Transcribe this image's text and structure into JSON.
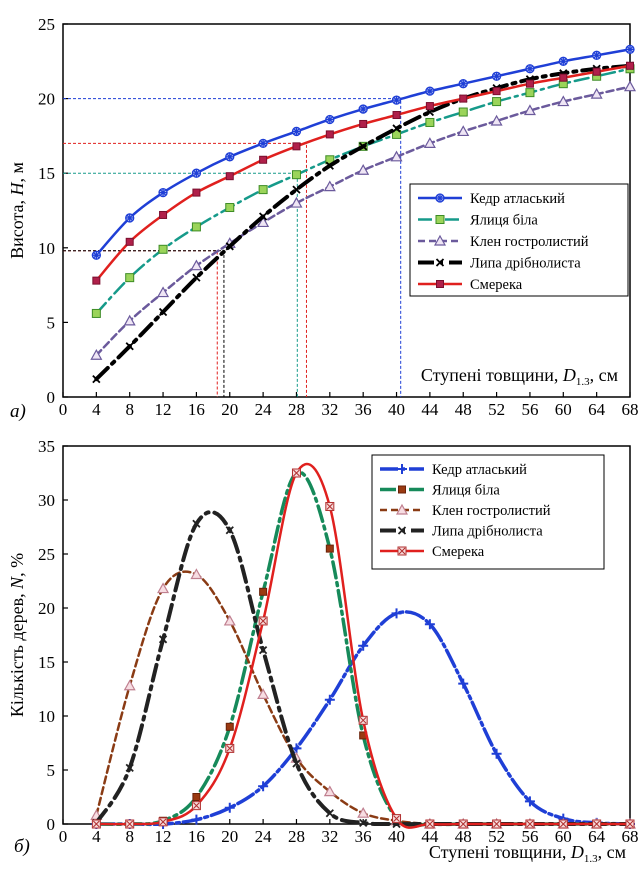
{
  "chart_data": [
    {
      "type": "line",
      "panel_label": "а)",
      "ylabel_parts": [
        "Висота, ",
        "H",
        ", м"
      ],
      "xlabel_parts": [
        "Ступені товщини, ",
        "D",
        "1.3",
        ", см"
      ],
      "x": [
        4,
        8,
        12,
        16,
        20,
        24,
        28,
        32,
        36,
        40,
        44,
        48,
        52,
        56,
        60,
        64,
        68
      ],
      "xlim": [
        0,
        68
      ],
      "ylim": [
        0,
        25
      ],
      "xticks": [
        0,
        4,
        8,
        12,
        16,
        20,
        24,
        28,
        32,
        36,
        40,
        44,
        48,
        52,
        56,
        60,
        64,
        68
      ],
      "yticks": [
        0,
        5,
        10,
        15,
        20,
        25
      ],
      "legend_position": "right",
      "series": [
        {
          "name": "Кедр атласький",
          "color": "#1f3fd6",
          "marker": "star",
          "dash": "",
          "values": [
            9.5,
            12.0,
            13.7,
            15.0,
            16.1,
            17.0,
            17.8,
            18.6,
            19.3,
            19.9,
            20.5,
            21.0,
            21.5,
            22.0,
            22.5,
            22.9,
            23.3
          ]
        },
        {
          "name": "Ялиця біла",
          "color": "#169a8a",
          "marker": "square-green",
          "dash": "14 5 3 5",
          "values": [
            5.6,
            8.0,
            9.9,
            11.4,
            12.7,
            13.9,
            14.9,
            15.9,
            16.8,
            17.6,
            18.4,
            19.1,
            19.8,
            20.4,
            21.0,
            21.5,
            22.0
          ]
        },
        {
          "name": "Клен гостролистий",
          "color": "#6b5a9c",
          "marker": "triangle",
          "dash": "7 4",
          "values": [
            2.8,
            5.1,
            7.0,
            8.8,
            10.3,
            11.7,
            13.0,
            14.1,
            15.2,
            16.1,
            17.0,
            17.8,
            18.5,
            19.2,
            19.8,
            20.3,
            20.8
          ]
        },
        {
          "name": "Липа дрібнолиста",
          "color": "#000000",
          "marker": "x",
          "dash": "16 6 3 6",
          "width": 4,
          "values": [
            1.2,
            3.4,
            5.7,
            8.0,
            10.1,
            12.1,
            13.9,
            15.5,
            16.8,
            18.0,
            19.1,
            20.0,
            20.7,
            21.3,
            21.7,
            22.0,
            22.2
          ]
        },
        {
          "name": "Смерека",
          "color": "#e0201e",
          "marker": "square-red",
          "dash": "",
          "values": [
            7.8,
            10.4,
            12.2,
            13.7,
            14.8,
            15.9,
            16.8,
            17.6,
            18.3,
            18.9,
            19.5,
            20.0,
            20.5,
            21.0,
            21.4,
            21.8,
            22.2
          ]
        }
      ],
      "guides": [
        {
          "color": "#1f3fd6",
          "x": 40.5,
          "y": 20
        },
        {
          "color": "#e0201e",
          "x": 29.2,
          "y": 17
        },
        {
          "color": "#169a8a",
          "x": 28.1,
          "y": 15
        },
        {
          "color": "#e0201e",
          "x": 18.5,
          "y": 9.8
        },
        {
          "color": "#000000",
          "x": 19.3,
          "y": 9.8
        }
      ]
    },
    {
      "type": "line",
      "panel_label": "б)",
      "ylabel_parts": [
        "Кількість дерев, ",
        "N",
        ", %"
      ],
      "xlabel_parts": [
        "Ступені товщини, ",
        "D",
        "1.3",
        ", см"
      ],
      "x": [
        4,
        8,
        12,
        16,
        20,
        24,
        28,
        32,
        36,
        40,
        44,
        48,
        52,
        56,
        60,
        64,
        68
      ],
      "xlim": [
        0,
        68
      ],
      "ylim": [
        0,
        35
      ],
      "xticks": [
        0,
        4,
        8,
        12,
        16,
        20,
        24,
        28,
        32,
        36,
        40,
        44,
        48,
        52,
        56,
        60,
        64,
        68
      ],
      "yticks": [
        0,
        5,
        10,
        15,
        20,
        25,
        30,
        35
      ],
      "legend_position": "top-right",
      "series": [
        {
          "name": "Кедр атласький",
          "color": "#1f3fd6",
          "marker": "plus",
          "dash": "18 4 3 4",
          "width": 3.5,
          "values": [
            0,
            0,
            0,
            0.4,
            1.5,
            3.5,
            7.0,
            11.5,
            16.5,
            19.5,
            18.5,
            13.0,
            6.5,
            2.1,
            0.5,
            0.1,
            0
          ]
        },
        {
          "name": "Ялиця біла",
          "color": "#168a5a",
          "marker": "square-brown",
          "dash": "16 5 3 5",
          "width": 3.5,
          "values": [
            0,
            0,
            0.3,
            2.5,
            9.0,
            21.5,
            32.5,
            25.5,
            8.2,
            0.5,
            0,
            0,
            0,
            0,
            0,
            0,
            0
          ]
        },
        {
          "name": "Клен гостролистий",
          "color": "#8a3b14",
          "marker": "triangle-pink",
          "dash": "7 4",
          "values": [
            0.8,
            12.8,
            21.8,
            23.1,
            18.8,
            12.0,
            6.1,
            3.0,
            1.0,
            0.3,
            0,
            0,
            0,
            0,
            0,
            0,
            0
          ]
        },
        {
          "name": "Липа дрібнолиста",
          "color": "#222222",
          "marker": "x",
          "dash": "16 6 3 6",
          "width": 4,
          "values": [
            0.1,
            5.2,
            17.1,
            27.8,
            27.2,
            16.1,
            5.6,
            1.0,
            0.1,
            0,
            0,
            0,
            0,
            0,
            0,
            0,
            0
          ]
        },
        {
          "name": "Смерека",
          "color": "#e0201e",
          "marker": "boxx",
          "dash": "",
          "values": [
            0,
            0,
            0.2,
            1.7,
            7.0,
            18.8,
            32.5,
            29.4,
            9.6,
            0.5,
            0,
            0,
            0,
            0,
            0,
            0,
            0
          ]
        }
      ]
    }
  ]
}
